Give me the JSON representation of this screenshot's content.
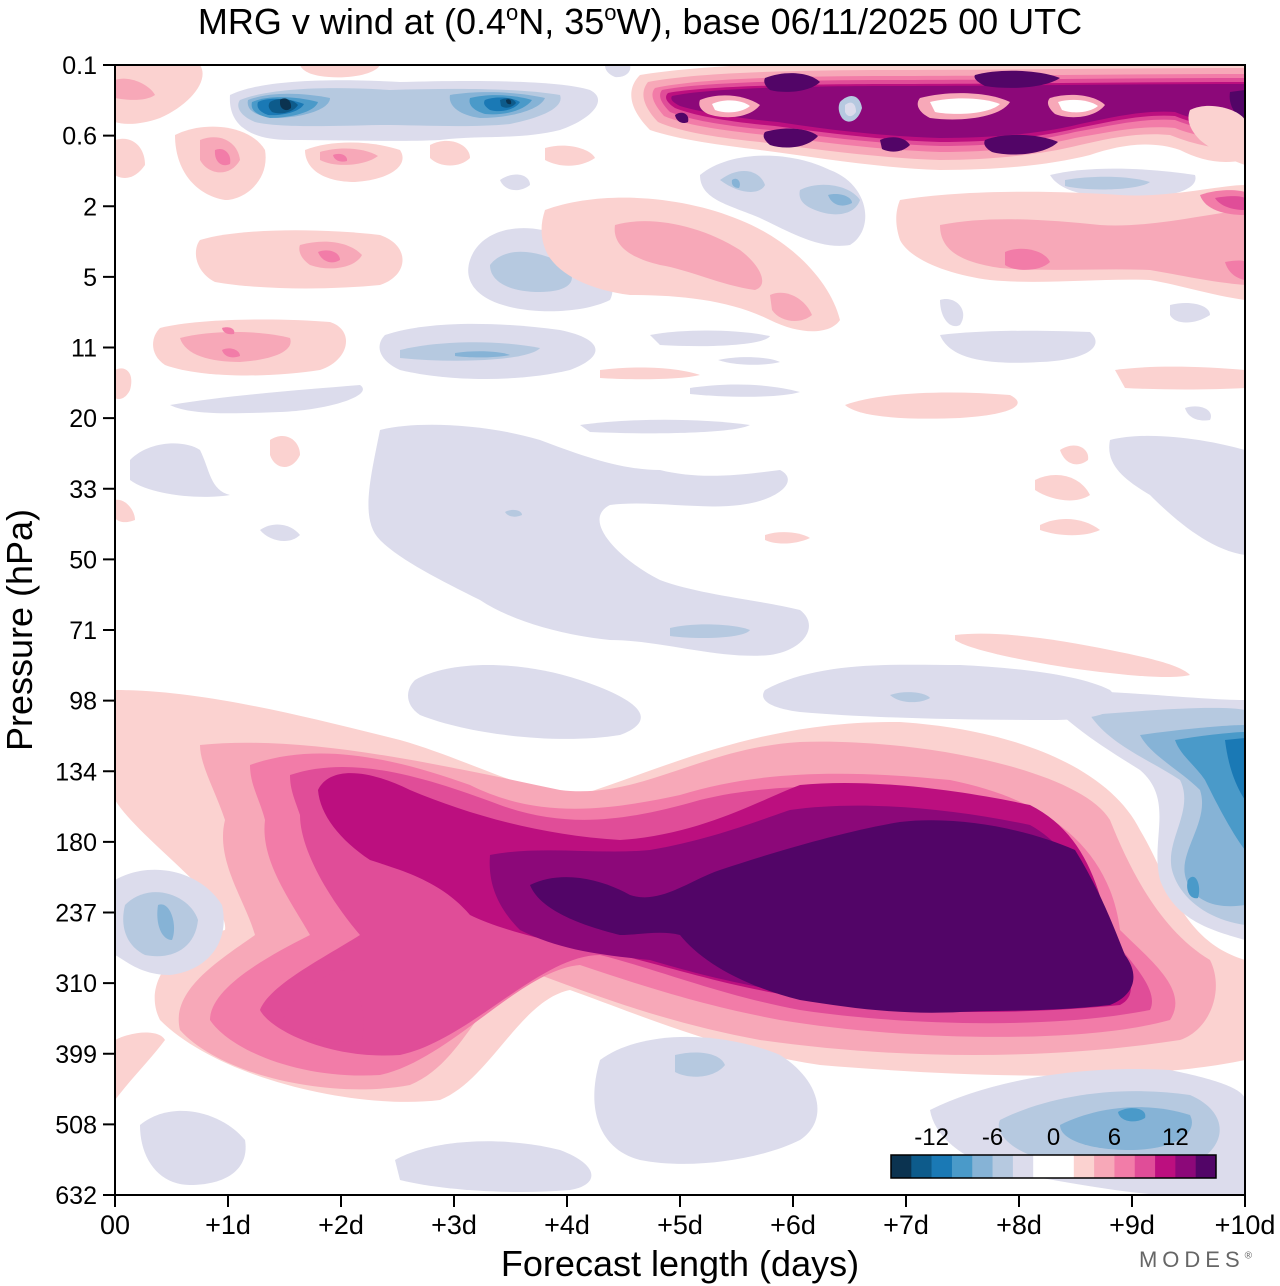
{
  "title": {
    "prefix": "MRG v wind at (0.4",
    "deg1": "o",
    "mid": "N, 35",
    "deg2": "o",
    "suffix": "W),  base 06/11/2025  00 UTC"
  },
  "brand": {
    "text": "MODES",
    "mark": "®"
  },
  "chart_data": {
    "type": "heatmap",
    "subtype": "filled-contour",
    "title": "MRG v wind at (0.4°N, 35°W),  base 06/11/2025  00 UTC",
    "xlabel": "Forecast length (days)",
    "ylabel": "Pressure (hPa)",
    "x_ticks": [
      "00",
      "+1d",
      "+2d",
      "+3d",
      "+4d",
      "+5d",
      "+6d",
      "+7d",
      "+8d",
      "+9d",
      "+10d"
    ],
    "x_range": [
      0,
      10
    ],
    "y_ticks": [
      "0.1",
      "0.6",
      "2",
      "5",
      "11",
      "20",
      "33",
      "50",
      "71",
      "98",
      "134",
      "180",
      "237",
      "310",
      "399",
      "508",
      "632"
    ],
    "y_range": [
      "0.1",
      "632"
    ],
    "colorbar": {
      "labels": [
        "-12",
        "-6",
        "0",
        "6",
        "12"
      ],
      "levels": [
        -16,
        -14,
        -12,
        -10,
        -8,
        -6,
        -4,
        -2,
        0,
        2,
        4,
        6,
        8,
        10,
        12,
        14,
        16
      ],
      "colors": [
        "#0b3350",
        "#0d5b8b",
        "#1a79b5",
        "#4a9ac9",
        "#86b3d6",
        "#b6c9e0",
        "#dcdcec",
        "#ffffff",
        "#ffffff",
        "#fbd2d0",
        "#f7a8b8",
        "#f27ca8",
        "#e04d98",
        "#bc0f7f",
        "#8c0879",
        "#520567"
      ]
    },
    "features": [
      {
        "name": "upper-troposphere-southerly-max",
        "x_days": [
          3.0,
          9.3
        ],
        "pressure_hPa": [
          160,
          340
        ],
        "peak_ms": 16
      },
      {
        "name": "day2-lower-southerly",
        "x_days": [
          1.5,
          2.3
        ],
        "pressure_hPa": [
          300,
          400
        ],
        "peak_ms": 10
      },
      {
        "name": "stratopause-southerly-max",
        "x_days": [
          5.0,
          10.0
        ],
        "pressure_hPa": [
          0.1,
          0.9
        ],
        "peak_ms": 16
      },
      {
        "name": "stratopause-northerly",
        "x_days": [
          1.2,
          4.0
        ],
        "pressure_hPa": [
          0.2,
          0.6
        ],
        "peak_ms": -16
      },
      {
        "name": "day10-upper-trop-northerly",
        "x_days": [
          9.3,
          10.0
        ],
        "pressure_hPa": [
          110,
          270
        ],
        "peak_ms": -12
      },
      {
        "name": "lower-trop-northerly",
        "x_days": [
          7.0,
          10.0
        ],
        "pressure_hPa": [
          450,
          600
        ],
        "peak_ms": -8
      }
    ]
  }
}
